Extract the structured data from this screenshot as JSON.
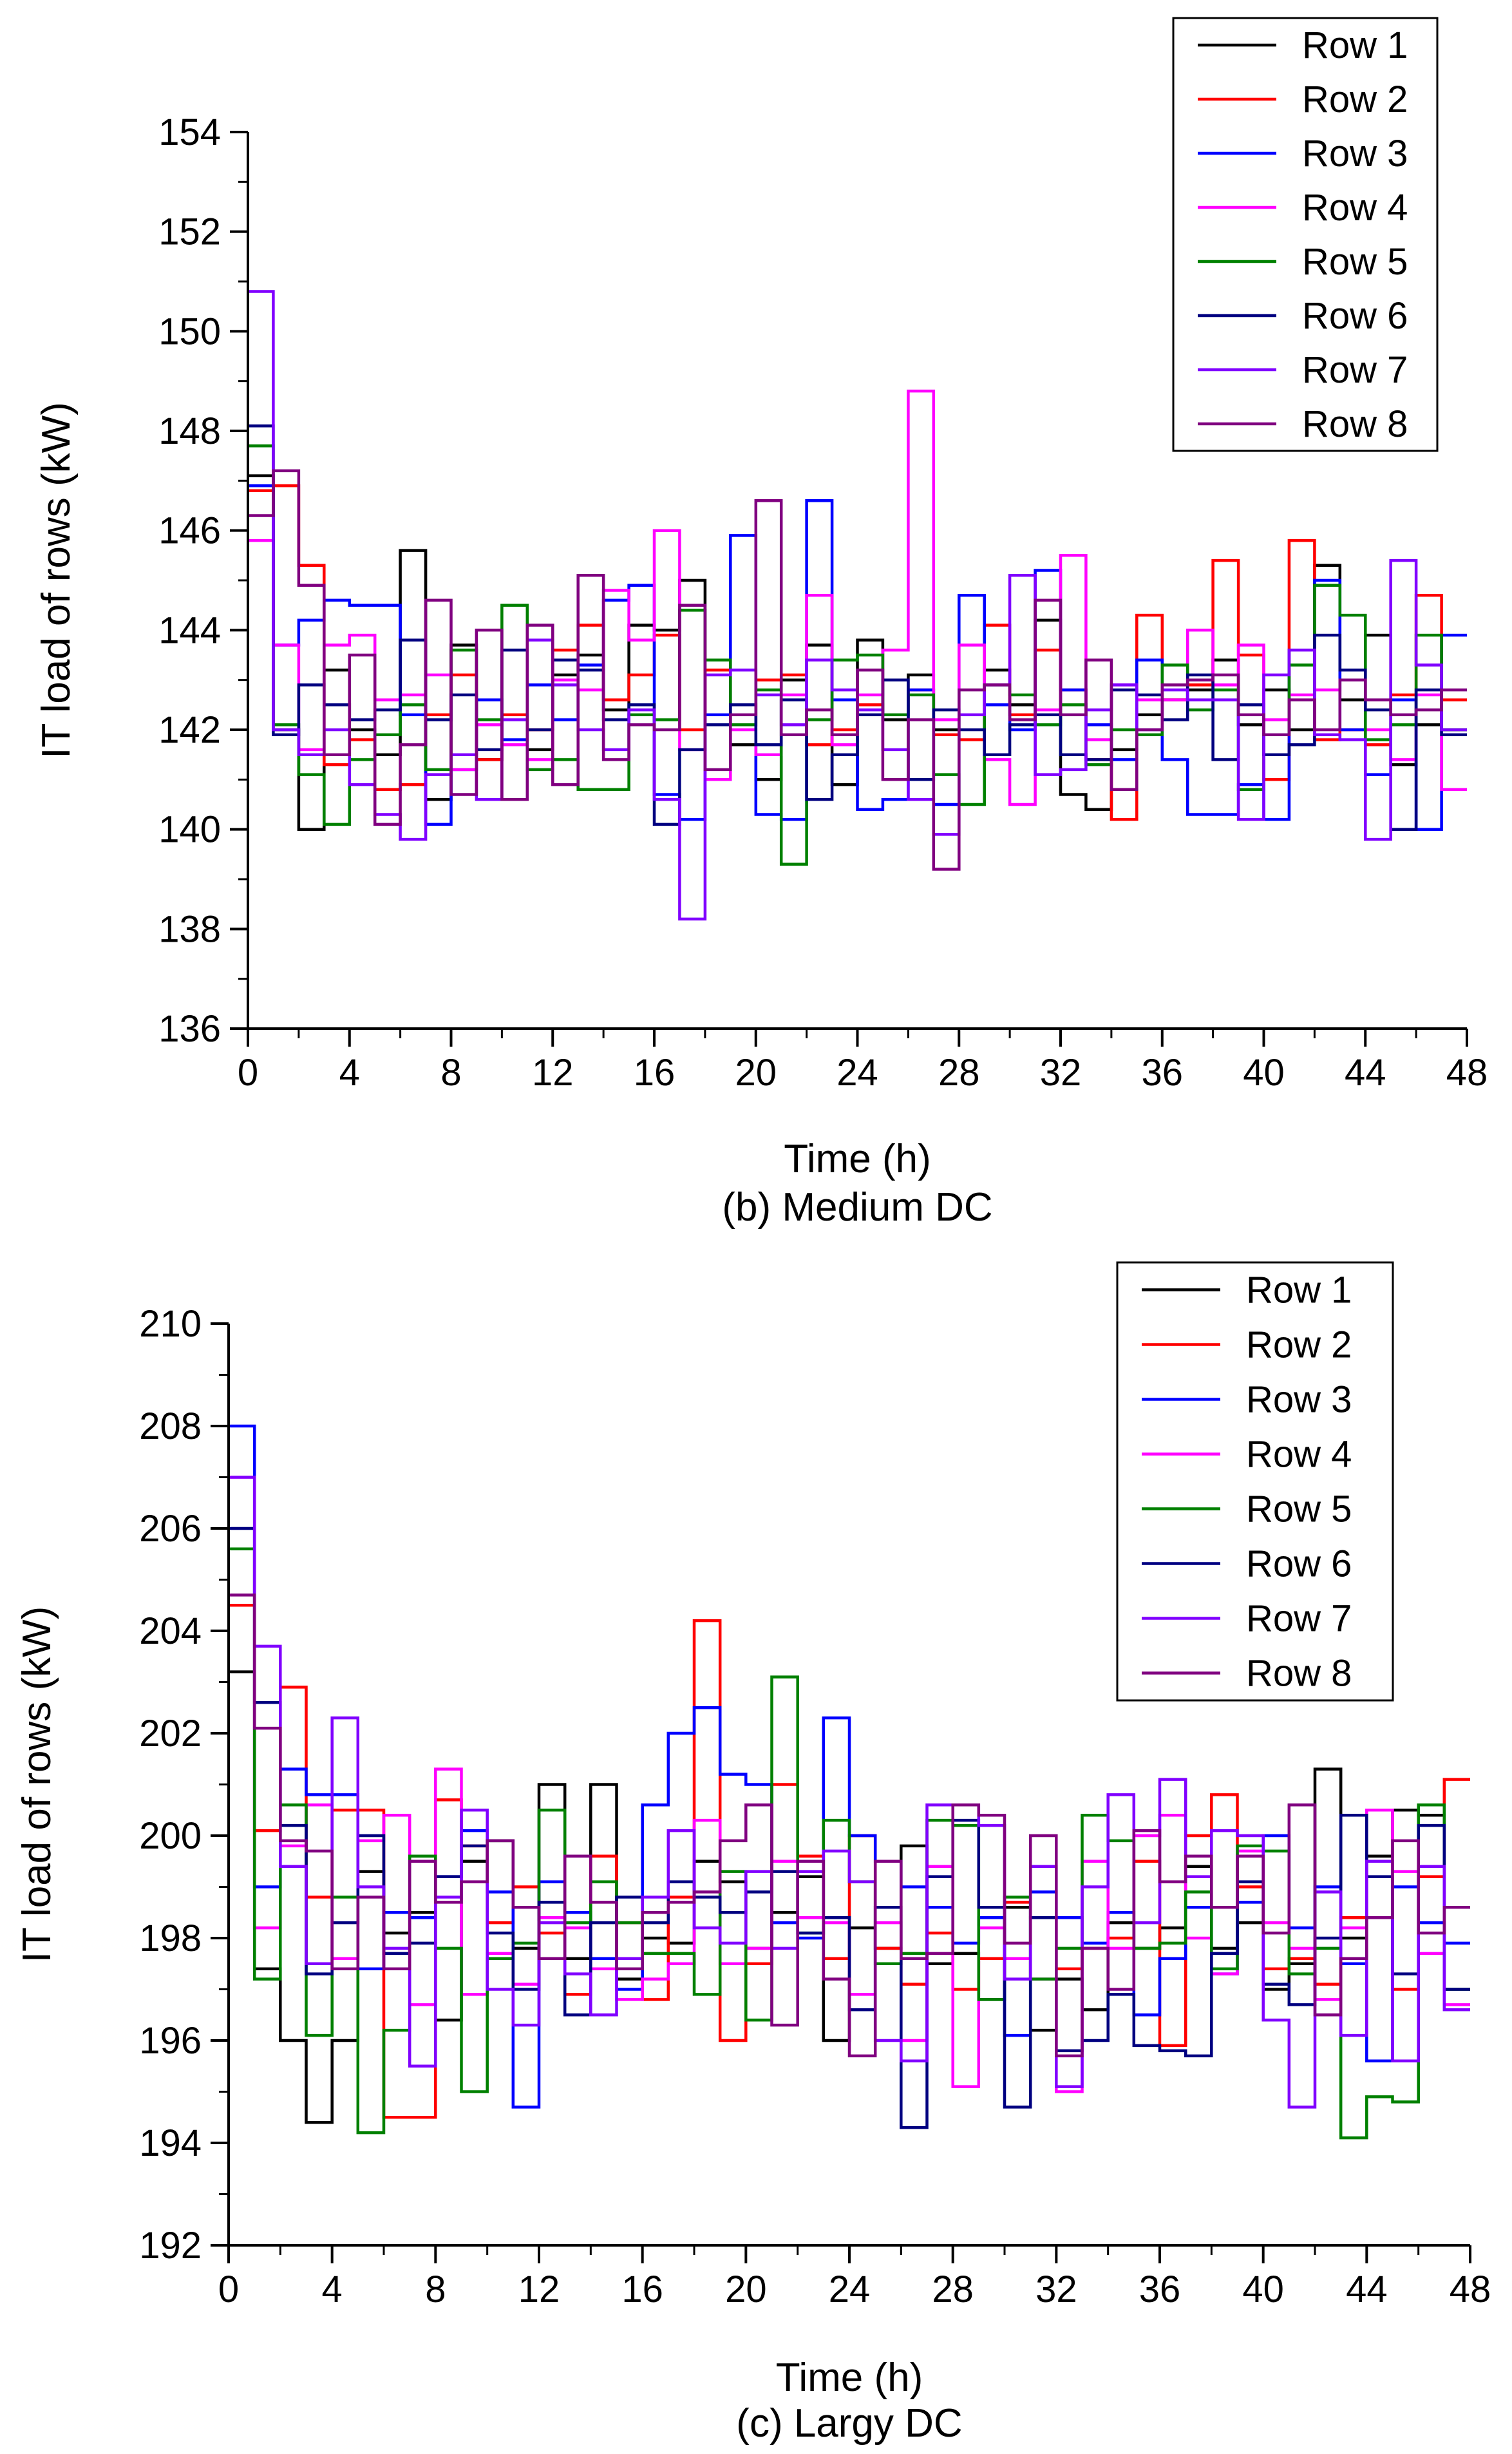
{
  "chart_data": [
    {
      "type": "line",
      "step": true,
      "title": "",
      "caption": "(b) Medium DC",
      "xlabel": "Time (h)",
      "ylabel": "IT load of rows (kW)",
      "xlim": [
        0,
        48
      ],
      "ylim": [
        136,
        154
      ],
      "xticks": [
        0,
        4,
        8,
        12,
        16,
        20,
        24,
        28,
        32,
        36,
        40,
        44,
        48
      ],
      "xtick_labels": [
        "0",
        "4",
        "8",
        "12",
        "16",
        "20",
        "24",
        "28",
        "32",
        "36",
        "40",
        "44",
        "48"
      ],
      "yticks": [
        136,
        138,
        140,
        142,
        144,
        146,
        148,
        150,
        152,
        154
      ],
      "ytick_labels": [
        "136",
        "138",
        "140",
        "142",
        "144",
        "146",
        "148",
        "150",
        "152",
        "154"
      ],
      "legend_position": "top-right",
      "series": [
        {
          "name": "Row 1",
          "color": "#000000",
          "values": [
            147.1,
            142.0,
            140.0,
            143.2,
            142.0,
            141.5,
            145.6,
            140.6,
            143.7,
            141.4,
            142.3,
            141.6,
            143.1,
            143.5,
            142.4,
            144.1,
            144.0,
            145.0,
            142.3,
            141.7,
            141.0,
            143.0,
            143.7,
            140.9,
            143.8,
            142.2,
            143.1,
            142.0,
            142.3,
            143.2,
            142.5,
            144.2,
            140.7,
            140.4,
            141.6,
            142.3,
            142.6,
            142.8,
            143.4,
            142.1,
            142.8,
            142.0,
            145.3,
            142.6,
            143.9,
            141.3,
            142.1,
            142.0
          ]
        },
        {
          "name": "Row 2",
          "color": "#ff0000",
          "values": [
            146.8,
            146.9,
            145.3,
            141.3,
            141.8,
            140.8,
            140.9,
            142.3,
            143.1,
            141.4,
            142.3,
            142.0,
            143.6,
            144.1,
            142.6,
            143.1,
            143.9,
            142.0,
            143.2,
            142.1,
            143.0,
            143.1,
            141.7,
            142.0,
            142.5,
            142.3,
            142.8,
            141.9,
            141.8,
            144.1,
            142.3,
            143.6,
            142.8,
            141.4,
            140.2,
            144.3,
            142.6,
            142.9,
            145.4,
            143.5,
            141.0,
            145.8,
            141.8,
            142.0,
            141.7,
            142.7,
            144.7,
            142.6
          ]
        },
        {
          "name": "Row 3",
          "color": "#0000ff",
          "values": [
            146.9,
            143.7,
            144.2,
            144.6,
            144.5,
            144.5,
            142.3,
            140.1,
            141.2,
            142.6,
            141.8,
            142.9,
            142.2,
            143.3,
            144.6,
            144.9,
            140.7,
            140.2,
            142.3,
            145.9,
            140.3,
            140.2,
            146.6,
            142.6,
            140.4,
            140.6,
            142.8,
            140.5,
            144.7,
            142.5,
            142.0,
            145.2,
            142.8,
            142.1,
            141.4,
            143.4,
            141.4,
            140.3,
            140.3,
            140.9,
            140.2,
            143.6,
            145.0,
            142.0,
            141.1,
            142.6,
            140.0,
            143.9
          ]
        },
        {
          "name": "Row 4",
          "color": "#ff00ff",
          "values": [
            145.8,
            143.7,
            141.6,
            143.7,
            143.9,
            142.6,
            142.7,
            143.1,
            141.2,
            142.1,
            141.7,
            141.4,
            143.0,
            142.8,
            144.8,
            143.8,
            146.0,
            141.6,
            141.0,
            142.0,
            141.5,
            142.7,
            144.7,
            141.7,
            142.7,
            143.6,
            148.8,
            142.2,
            143.7,
            141.4,
            140.5,
            142.4,
            145.5,
            141.8,
            142.9,
            142.6,
            142.6,
            144.0,
            142.9,
            143.7,
            142.2,
            142.7,
            142.8,
            143.0,
            142.0,
            141.4,
            142.7,
            140.8
          ]
        },
        {
          "name": "Row 5",
          "color": "#008000",
          "values": [
            147.7,
            142.1,
            141.1,
            140.1,
            141.4,
            141.9,
            142.5,
            141.2,
            143.6,
            142.2,
            144.5,
            141.2,
            141.4,
            140.8,
            140.8,
            142.3,
            142.2,
            144.4,
            143.4,
            142.1,
            142.8,
            139.3,
            142.2,
            143.4,
            143.5,
            142.3,
            142.7,
            141.1,
            140.5,
            142.9,
            142.7,
            142.1,
            142.5,
            141.3,
            142.0,
            141.9,
            143.3,
            142.4,
            142.8,
            140.8,
            141.9,
            143.3,
            144.9,
            144.3,
            141.8,
            142.1,
            143.9,
            142.0
          ]
        },
        {
          "name": "Row 6",
          "color": "#000080",
          "values": [
            148.1,
            141.9,
            142.9,
            142.5,
            142.2,
            142.4,
            143.8,
            142.2,
            142.7,
            141.6,
            143.6,
            142.0,
            143.4,
            143.2,
            142.2,
            142.5,
            140.1,
            141.6,
            142.1,
            142.5,
            141.7,
            142.6,
            140.6,
            141.5,
            142.3,
            143.0,
            141.0,
            142.4,
            142.0,
            141.5,
            142.1,
            142.3,
            141.5,
            141.4,
            142.8,
            142.7,
            142.2,
            143.1,
            141.4,
            142.5,
            141.5,
            141.7,
            143.9,
            143.2,
            142.4,
            140.0,
            142.8,
            141.9
          ]
        },
        {
          "name": "Row 7",
          "color": "#8000ff",
          "values": [
            150.8,
            142.0,
            141.5,
            142.0,
            140.9,
            140.3,
            139.8,
            141.1,
            141.5,
            140.6,
            142.2,
            143.8,
            142.9,
            142.0,
            141.6,
            142.4,
            140.6,
            138.2,
            143.1,
            143.2,
            142.7,
            142.1,
            143.4,
            142.8,
            142.4,
            141.6,
            140.6,
            139.9,
            142.3,
            142.9,
            145.1,
            141.1,
            141.2,
            142.4,
            142.9,
            142.0,
            142.8,
            142.6,
            142.6,
            140.2,
            143.1,
            143.6,
            141.9,
            141.8,
            139.8,
            145.4,
            143.3,
            142.0
          ]
        },
        {
          "name": "Row 8",
          "color": "#800080",
          "values": [
            146.3,
            147.2,
            144.9,
            141.5,
            143.5,
            140.1,
            141.7,
            144.6,
            140.7,
            144.0,
            140.6,
            144.1,
            140.9,
            145.1,
            141.4,
            142.1,
            142.0,
            144.5,
            141.2,
            142.3,
            146.6,
            141.9,
            142.4,
            141.9,
            143.2,
            141.0,
            142.2,
            139.2,
            142.8,
            142.9,
            142.2,
            144.6,
            142.3,
            143.4,
            140.8,
            142.0,
            142.9,
            143.0,
            143.1,
            142.3,
            141.9,
            142.6,
            142.0,
            143.0,
            142.6,
            142.3,
            142.4,
            142.8
          ]
        }
      ]
    },
    {
      "type": "line",
      "step": true,
      "title": "",
      "caption": "(c) Largy DC",
      "xlabel": "Time (h)",
      "ylabel": "IT load of rows (kW)",
      "xlim": [
        0,
        48
      ],
      "ylim": [
        192,
        210
      ],
      "xticks": [
        0,
        4,
        8,
        12,
        16,
        20,
        24,
        28,
        32,
        36,
        40,
        44,
        48
      ],
      "xtick_labels": [
        "0",
        "4",
        "8",
        "12",
        "16",
        "20",
        "24",
        "28",
        "32",
        "36",
        "40",
        "44",
        "48"
      ],
      "yticks": [
        192,
        194,
        196,
        198,
        200,
        202,
        204,
        206,
        208,
        210
      ],
      "ytick_labels": [
        "192",
        "194",
        "196",
        "198",
        "200",
        "202",
        "204",
        "206",
        "208",
        "210"
      ],
      "legend_position": "top-right",
      "series": [
        {
          "name": "Row 1",
          "color": "#000000",
          "values": [
            203.2,
            197.4,
            196.0,
            194.4,
            196.0,
            199.3,
            198.1,
            198.5,
            196.4,
            199.5,
            199.9,
            197.8,
            201.0,
            197.6,
            201.0,
            197.2,
            198.0,
            197.9,
            199.5,
            199.1,
            197.8,
            198.5,
            199.2,
            196.0,
            198.2,
            197.8,
            199.8,
            197.5,
            197.7,
            196.8,
            198.6,
            196.2,
            197.2,
            196.6,
            198.3,
            197.8,
            198.2,
            199.4,
            197.8,
            198.3,
            197.0,
            197.5,
            201.3,
            198.0,
            199.6,
            200.5,
            200.4,
            197.0
          ]
        },
        {
          "name": "Row 2",
          "color": "#ff0000",
          "values": [
            204.5,
            200.1,
            202.9,
            198.8,
            200.5,
            200.5,
            194.5,
            194.5,
            200.7,
            199.8,
            198.3,
            199.0,
            198.1,
            196.9,
            199.6,
            198.3,
            196.8,
            198.8,
            204.2,
            196.0,
            197.5,
            201.0,
            199.6,
            197.6,
            200.0,
            197.8,
            197.1,
            198.1,
            197.0,
            197.6,
            198.7,
            198.4,
            197.4,
            197.8,
            198.0,
            199.5,
            195.9,
            200.0,
            200.8,
            199.0,
            197.4,
            197.6,
            197.1,
            198.4,
            198.4,
            197.0,
            199.2,
            201.1
          ]
        },
        {
          "name": "Row 3",
          "color": "#0000ff",
          "values": [
            208.0,
            199.0,
            201.3,
            200.8,
            200.8,
            197.4,
            198.5,
            198.4,
            199.2,
            200.1,
            198.9,
            194.7,
            199.1,
            198.5,
            197.6,
            197.0,
            200.6,
            202.0,
            202.5,
            201.2,
            201.0,
            198.3,
            198.0,
            202.3,
            200.0,
            199.5,
            199.0,
            198.6,
            197.9,
            198.4,
            196.1,
            198.9,
            198.4,
            197.9,
            198.5,
            196.5,
            197.6,
            198.6,
            197.3,
            198.7,
            200.0,
            198.2,
            199.0,
            197.5,
            195.6,
            199.0,
            198.3,
            197.9
          ]
        },
        {
          "name": "Row 4",
          "color": "#ff00ff",
          "values": [
            207.0,
            198.2,
            199.8,
            200.6,
            197.6,
            199.9,
            200.4,
            196.7,
            201.3,
            196.9,
            197.7,
            197.1,
            198.4,
            198.2,
            197.4,
            196.8,
            197.2,
            197.5,
            200.3,
            197.5,
            197.8,
            199.5,
            198.4,
            198.3,
            196.9,
            198.3,
            196.0,
            199.4,
            195.1,
            198.2,
            197.6,
            197.2,
            195.0,
            199.5,
            197.8,
            200.0,
            200.4,
            198.0,
            197.3,
            199.7,
            198.3,
            197.8,
            196.8,
            198.2,
            200.5,
            199.3,
            197.7,
            196.7
          ]
        },
        {
          "name": "Row 5",
          "color": "#008000",
          "values": [
            205.6,
            197.2,
            200.6,
            196.1,
            198.8,
            194.2,
            196.2,
            199.6,
            197.8,
            195.0,
            197.6,
            197.9,
            200.5,
            198.3,
            199.1,
            198.3,
            197.7,
            197.7,
            196.9,
            199.3,
            196.4,
            203.1,
            198.1,
            200.3,
            199.1,
            197.5,
            197.7,
            200.3,
            200.2,
            196.8,
            198.8,
            197.2,
            197.8,
            200.4,
            199.9,
            197.8,
            197.9,
            198.9,
            197.4,
            199.8,
            199.7,
            197.3,
            197.8,
            194.1,
            194.9,
            194.8,
            200.6,
            197.0
          ]
        },
        {
          "name": "Row 6",
          "color": "#000080",
          "values": [
            206.0,
            202.6,
            200.2,
            197.3,
            198.3,
            200.0,
            197.7,
            197.9,
            199.2,
            199.8,
            198.1,
            197.0,
            198.7,
            196.5,
            198.3,
            198.8,
            198.3,
            199.1,
            198.8,
            198.5,
            198.9,
            199.3,
            198.1,
            198.4,
            196.6,
            198.6,
            194.3,
            199.2,
            200.3,
            198.6,
            194.7,
            198.4,
            195.8,
            196.0,
            196.9,
            195.9,
            195.8,
            195.7,
            197.7,
            199.1,
            197.1,
            196.7,
            198.0,
            200.4,
            199.2,
            197.3,
            200.2,
            197.0
          ]
        },
        {
          "name": "Row 7",
          "color": "#8000ff",
          "values": [
            207.0,
            203.7,
            199.4,
            197.5,
            202.3,
            199.0,
            197.8,
            195.5,
            198.8,
            200.5,
            197.0,
            196.3,
            198.3,
            197.3,
            196.5,
            197.6,
            198.8,
            200.1,
            198.2,
            197.9,
            199.3,
            197.8,
            199.3,
            199.7,
            199.1,
            196.0,
            195.6,
            200.6,
            200.6,
            200.2,
            197.2,
            199.4,
            195.1,
            199.0,
            200.8,
            198.3,
            201.1,
            199.2,
            200.1,
            200.0,
            196.4,
            194.7,
            198.9,
            196.1,
            199.5,
            195.6,
            199.4,
            196.6
          ]
        },
        {
          "name": "Row 8",
          "color": "#800080",
          "values": [
            204.7,
            202.1,
            199.9,
            199.7,
            197.4,
            198.8,
            197.4,
            199.5,
            198.7,
            199.1,
            199.9,
            198.6,
            197.6,
            199.6,
            198.7,
            197.4,
            198.5,
            198.7,
            198.9,
            199.9,
            200.6,
            196.3,
            199.5,
            197.2,
            195.7,
            199.5,
            197.6,
            197.7,
            200.6,
            200.4,
            197.9,
            200.0,
            195.7,
            197.8,
            197.0,
            200.1,
            199.1,
            199.6,
            198.6,
            199.6,
            198.1,
            200.6,
            196.5,
            197.6,
            198.4,
            199.9,
            198.1,
            198.6
          ]
        }
      ]
    }
  ]
}
